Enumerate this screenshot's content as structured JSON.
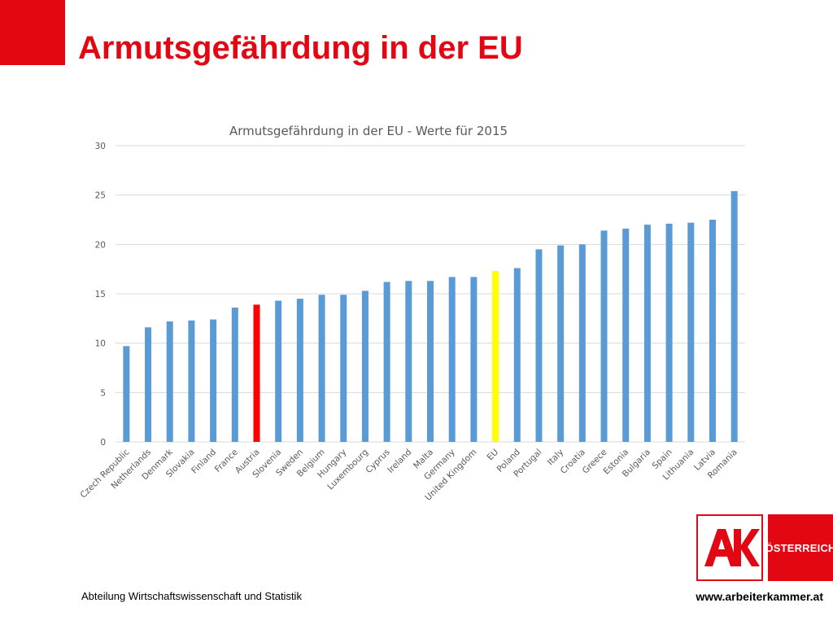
{
  "slide": {
    "title": "Armutsgefährdung in der EU",
    "footer_left": "Abteilung Wirtschaftswissenschaft und Statistik",
    "footer_right": "www.arbeiterkammer.at"
  },
  "logo": {
    "left_text": "AK",
    "right_text": "ÖSTERREICH",
    "color": "#e30613"
  },
  "chart_data": {
    "type": "bar",
    "title": "Armutsgefährdung in der EU - Werte für 2015",
    "xlabel": "",
    "ylabel": "",
    "ylim": [
      0,
      30
    ],
    "yticks": [
      0,
      5,
      10,
      15,
      20,
      25,
      30
    ],
    "grid": true,
    "legend": "none",
    "categories": [
      "Czech Republic",
      "Netherlands",
      "Denmark",
      "Slovakia",
      "Finland",
      "France",
      "Austria",
      "Slovenia",
      "Sweden",
      "Belgium",
      "Hungary",
      "Luxembourg",
      "Cyprus",
      "Ireland",
      "Malta",
      "Germany",
      "United Kingdom",
      "EU",
      "Poland",
      "Portugal",
      "Italy",
      "Croatia",
      "Greece",
      "Estonia",
      "Bulgaria",
      "Spain",
      "Lithuania",
      "Latvia",
      "Romania"
    ],
    "values": [
      9.7,
      11.6,
      12.2,
      12.3,
      12.4,
      13.6,
      13.9,
      14.3,
      14.5,
      14.9,
      14.9,
      15.3,
      16.2,
      16.3,
      16.3,
      16.7,
      16.7,
      17.3,
      17.6,
      19.5,
      19.9,
      20.0,
      21.4,
      21.6,
      22.0,
      22.1,
      22.2,
      22.5,
      25.4
    ],
    "bar_colors": {
      "default": "#5b9bd5",
      "Austria": "#ff0000",
      "EU": "#ffff00"
    }
  }
}
